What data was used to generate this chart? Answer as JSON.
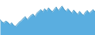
{
  "values": [
    55,
    50,
    48,
    52,
    49,
    44,
    48,
    42,
    40,
    45,
    50,
    53,
    58,
    62,
    55,
    60,
    65,
    68,
    62,
    70,
    74,
    78,
    73,
    80,
    75,
    82,
    77,
    73,
    79,
    84,
    76,
    81,
    86,
    79,
    74,
    80,
    75,
    70,
    77,
    72,
    67,
    74,
    69,
    65,
    72,
    76,
    70,
    74,
    78,
    73
  ],
  "fill_color": "#5aaee0",
  "line_color": "#3b8fbf",
  "background_color": "#ffffff",
  "ylim_min": 20,
  "ylim_max": 100
}
